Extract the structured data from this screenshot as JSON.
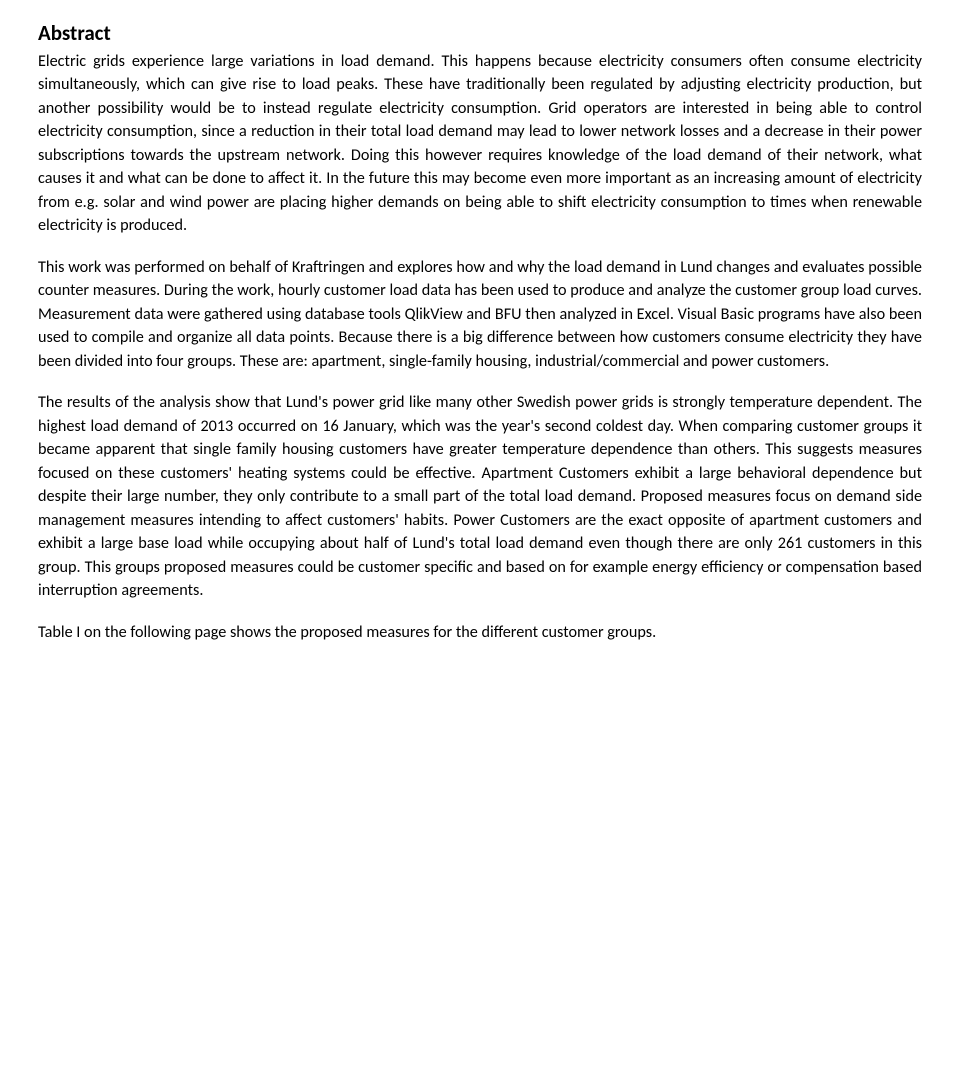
{
  "heading": "Abstract",
  "paragraphs": [
    "Electric grids experience large variations in load demand. This happens because electricity consumers often consume electricity simultaneously, which can give rise to load peaks. These have traditionally been regulated by adjusting electricity production, but another possibility would be to instead regulate electricity consumption. Grid operators are interested in being able to control electricity consumption, since a reduction in their total load demand may lead to lower network losses and a decrease in their power subscriptions towards the upstream network. Doing this however requires knowledge of the load demand of their network, what causes it and what can be done to affect it. In the future this may become even more important as an increasing amount of electricity from e.g. solar and wind power are placing higher demands on being able to shift electricity consumption to times when renewable electricity is produced.",
    "This work was performed on behalf of Kraftringen and explores how and why the load demand in Lund changes and evaluates possible counter measures. During the work, hourly customer load data has been used to produce and analyze the customer group load curves. Measurement data were gathered using database tools QlikView and BFU then analyzed in Excel. Visual Basic programs have also been used to compile and organize all data points. Because there is a big difference between how customers consume electricity they have been divided into four groups. These are: apartment, single-family housing, industrial/commercial and power customers.",
    "The results of the analysis show that Lund's power grid like many other Swedish power grids is strongly temperature dependent. The highest load demand of 2013 occurred on 16 January, which was the year's second coldest day. When comparing customer groups it became apparent that single family housing customers have greater temperature dependence than others. This suggests measures focused on these customers' heating systems could be effective. Apartment Customers exhibit a large behavioral dependence but despite their large number, they only contribute to a small part of the total load demand. Proposed measures focus on demand side management measures intending to affect customers' habits. Power Customers are the exact opposite of apartment customers and exhibit a large base load while occupying about half of Lund's total load demand even though there are only 261 customers in this group. This groups proposed measures could be customer specific and based on for example energy efficiency or compensation based interruption agreements.",
    "Table I on the following page shows the proposed measures for the different customer groups."
  ]
}
